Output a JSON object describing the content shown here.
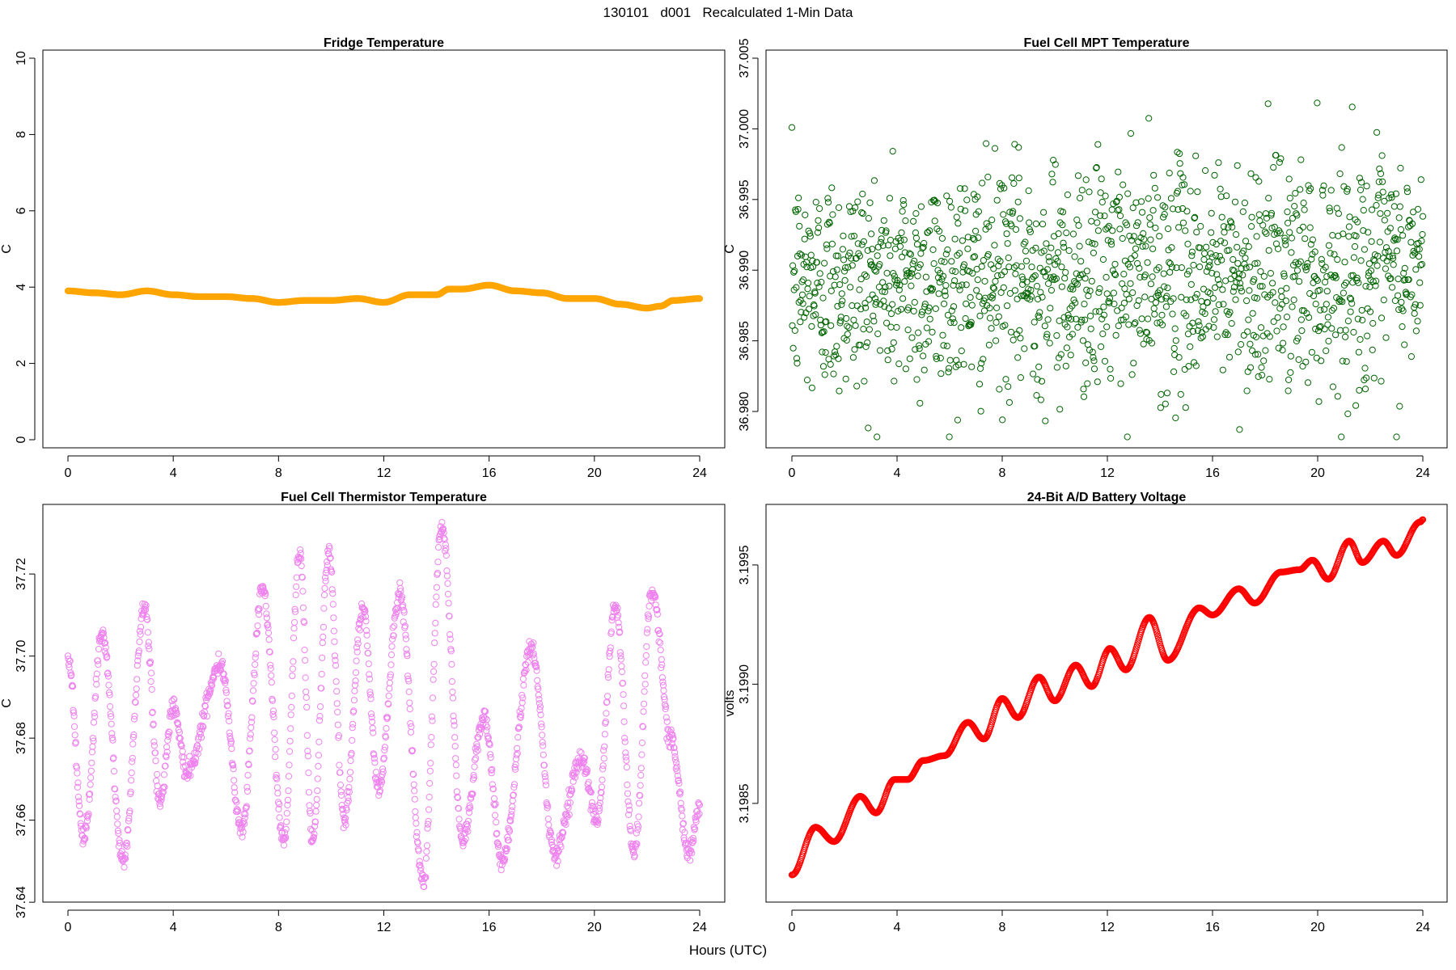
{
  "figure": {
    "title": "130101   d001   Recalculated 1-Min Data",
    "xlabel": "Hours (UTC)"
  },
  "chart_data": [
    {
      "type": "scatter",
      "title": "Fridge Temperature",
      "xlabel": "",
      "ylabel": "C",
      "xlim": [
        0,
        24
      ],
      "ylim": [
        0,
        10
      ],
      "x_ticks": [
        0,
        4,
        8,
        12,
        16,
        20,
        24
      ],
      "y_ticks": [
        0,
        2,
        4,
        6,
        8,
        10
      ],
      "color": "#FFA500",
      "marker": "open-circle",
      "series": [
        {
          "x": [
            0,
            1,
            2,
            3,
            4,
            5,
            6,
            7,
            8,
            9,
            10,
            11,
            12,
            13,
            14,
            14.5,
            15,
            16,
            17,
            18,
            19,
            20,
            21,
            22,
            22.5,
            23,
            24
          ],
          "y": [
            3.9,
            3.85,
            3.8,
            3.9,
            3.8,
            3.75,
            3.75,
            3.7,
            3.6,
            3.65,
            3.65,
            3.7,
            3.6,
            3.8,
            3.8,
            3.95,
            3.95,
            4.05,
            3.9,
            3.85,
            3.7,
            3.7,
            3.55,
            3.45,
            3.5,
            3.65,
            3.7
          ]
        }
      ]
    },
    {
      "type": "scatter",
      "title": "Fuel Cell MPT Temperature",
      "xlabel": "",
      "ylabel": "C",
      "xlim": [
        0,
        24
      ],
      "ylim": [
        36.978,
        37.005
      ],
      "x_ticks": [
        0,
        4,
        8,
        12,
        16,
        20,
        24
      ],
      "y_ticks": [
        36.98,
        36.985,
        36.99,
        36.995,
        37.0,
        37.005
      ],
      "y_tick_labels": [
        "36.980",
        "36.985",
        "36.990",
        "36.995",
        "37.000",
        "37.005"
      ],
      "color": "#006400",
      "marker": "open-circle",
      "point_count": 1440,
      "center_start": 36.989,
      "center_end": 36.99,
      "spread": 0.004
    },
    {
      "type": "scatter",
      "title": "Fuel Cell Thermistor Temperature",
      "xlabel": "",
      "ylabel": "C",
      "xlim": [
        0,
        24
      ],
      "ylim": [
        37.642,
        37.735
      ],
      "x_ticks": [
        0,
        4,
        8,
        12,
        16,
        20,
        24
      ],
      "y_ticks": [
        37.64,
        37.66,
        37.68,
        37.7,
        37.72
      ],
      "y_tick_labels": [
        "37.64",
        "37.66",
        "37.68",
        "37.70",
        "37.72"
      ],
      "color": "#EE82EE",
      "marker": "open-circle",
      "point_count": 1440,
      "extrema": {
        "x": [
          0,
          0.6,
          1.3,
          2.1,
          2.9,
          3.5,
          4.0,
          4.5,
          5.8,
          6.6,
          7.4,
          8.2,
          8.8,
          9.3,
          9.9,
          10.5,
          11.2,
          11.8,
          12.6,
          13.5,
          14.2,
          15.0,
          15.8,
          16.5,
          17.6,
          18.5,
          19.5,
          20.1,
          20.8,
          21.5,
          22.2,
          22.9,
          23.6,
          24.0
        ],
        "y": [
          37.7,
          37.655,
          37.705,
          37.65,
          37.712,
          37.665,
          37.688,
          37.672,
          37.698,
          37.658,
          37.716,
          37.655,
          37.725,
          37.655,
          37.725,
          37.66,
          37.712,
          37.668,
          37.715,
          37.645,
          37.732,
          37.655,
          37.685,
          37.65,
          37.702,
          37.652,
          37.675,
          37.66,
          37.712,
          37.652,
          37.716,
          37.68,
          37.652,
          37.663
        ]
      }
    },
    {
      "type": "scatter",
      "title": "24-Bit A/D Battery Voltage",
      "xlabel": "",
      "ylabel": "volts",
      "xlim": [
        0,
        24
      ],
      "ylim": [
        3.19812,
        3.19972
      ],
      "x_ticks": [
        0,
        4,
        8,
        12,
        16,
        20,
        24
      ],
      "y_ticks": [
        3.1985,
        3.199,
        3.1995
      ],
      "y_tick_labels": [
        "3.1985",
        "3.1990",
        "3.1995"
      ],
      "color": "#FF0000",
      "marker": "open-circle",
      "series": [
        {
          "x": [
            0,
            0.9,
            1.6,
            2.6,
            3.2,
            3.9,
            4.4,
            5.0,
            5.8,
            6.7,
            7.3,
            8.0,
            8.6,
            9.4,
            10.0,
            10.8,
            11.4,
            12.1,
            12.7,
            13.6,
            14.3,
            15.5,
            16.0,
            17.0,
            17.6,
            18.6,
            19.3,
            19.8,
            20.4,
            21.2,
            21.7,
            22.5,
            23.0,
            23.9,
            24.0
          ],
          "y": [
            3.1982,
            3.1984,
            3.19834,
            3.19853,
            3.19846,
            3.1986,
            3.1986,
            3.19868,
            3.1987,
            3.19884,
            3.19877,
            3.19894,
            3.19886,
            3.19903,
            3.19893,
            3.19908,
            3.19899,
            3.19915,
            3.19906,
            3.19928,
            3.1991,
            3.19932,
            3.19929,
            3.1994,
            3.19934,
            3.19947,
            3.19948,
            3.19952,
            3.19944,
            3.1996,
            3.19951,
            3.1996,
            3.19954,
            3.19968,
            3.19969
          ]
        }
      ]
    }
  ]
}
